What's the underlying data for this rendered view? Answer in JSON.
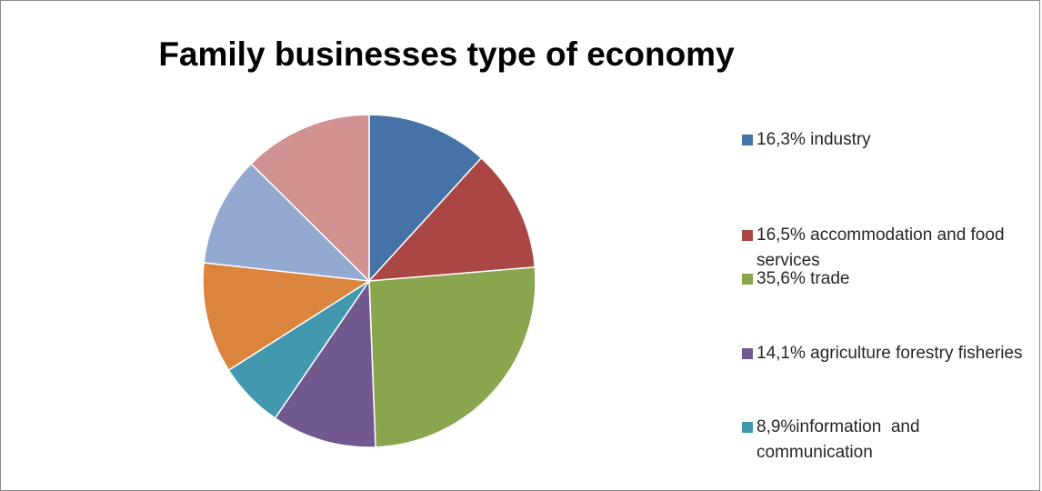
{
  "chart_data": {
    "type": "pie",
    "title": "Family businesses type of economy",
    "legend_position": "right",
    "start_angle_deg": 0,
    "direction": "clockwise",
    "slices": [
      {
        "label": "16,3% industry",
        "value": 16.3,
        "color": "#4572A7"
      },
      {
        "label": "16,5% accommodation and food services",
        "value": 16.5,
        "color": "#AA4643"
      },
      {
        "label": "35,6% trade",
        "value": 35.6,
        "color": "#89A54E"
      },
      {
        "label": "14,1% agriculture forestry fisheries",
        "value": 14.1,
        "color": "#71588F"
      },
      {
        "label": "8,9%information  and communication",
        "value": 8.9,
        "color": "#4198AF"
      },
      {
        "label": "",
        "value": 14.9,
        "color": "#DB843D"
      },
      {
        "label": "",
        "value": 14.8,
        "color": "#93A9CF"
      },
      {
        "label": "",
        "value": 17.4,
        "color": "#D19392"
      }
    ]
  }
}
